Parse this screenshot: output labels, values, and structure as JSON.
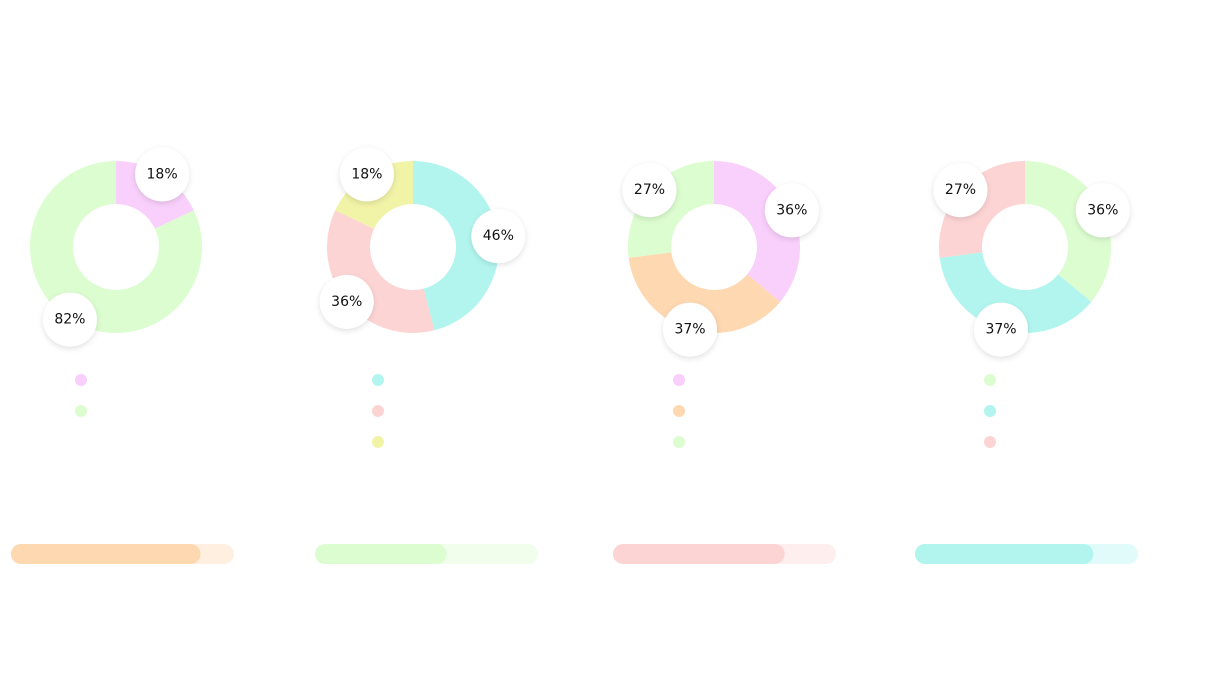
{
  "chart_data": [
    {
      "type": "donut",
      "values": [
        18,
        82
      ],
      "value_labels": [
        "18%",
        "82%"
      ],
      "colors": [
        "#f9cffb",
        "#dcfdd0"
      ]
    },
    {
      "type": "donut",
      "values": [
        46,
        36,
        18
      ],
      "value_labels": [
        "46%",
        "36%",
        "18%"
      ],
      "colors": [
        "#b2f5ef",
        "#fdd4d4",
        "#f1f3a7"
      ]
    },
    {
      "type": "donut",
      "values": [
        36,
        37,
        27
      ],
      "value_labels": [
        "36%",
        "37%",
        "27%"
      ],
      "colors": [
        "#f9cffb",
        "#fed8b1",
        "#dcfdd0"
      ]
    },
    {
      "type": "donut",
      "values": [
        36,
        37,
        27
      ],
      "value_labels": [
        "36%",
        "37%",
        "27%"
      ],
      "colors": [
        "#dcfdd0",
        "#b2f5ef",
        "#fdd4d4"
      ]
    },
    {
      "type": "progress",
      "values": [
        85
      ],
      "xlim": [
        0,
        100
      ],
      "color": "#fed8b1"
    },
    {
      "type": "progress",
      "values": [
        59
      ],
      "xlim": [
        0,
        100
      ],
      "color": "#dcfdd0"
    },
    {
      "type": "progress",
      "values": [
        77
      ],
      "xlim": [
        0,
        100
      ],
      "color": "#fdd4d4"
    },
    {
      "type": "progress",
      "values": [
        80
      ],
      "xlim": [
        0,
        100
      ],
      "color": "#b2f5ef"
    }
  ]
}
